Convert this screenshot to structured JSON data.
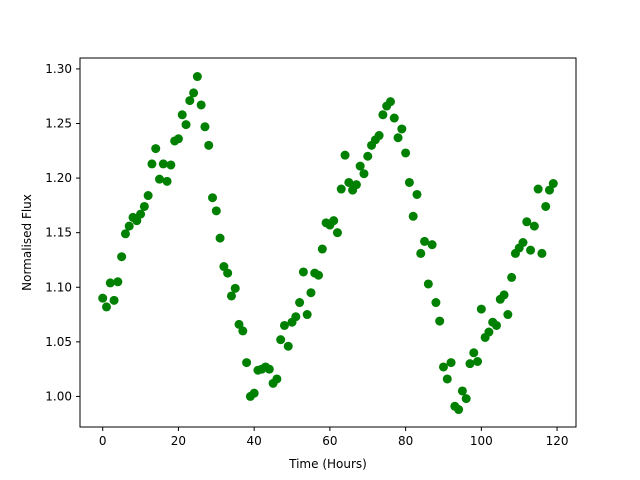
{
  "chart_data": {
    "type": "scatter",
    "title": "",
    "xlabel": "Time (Hours)",
    "ylabel": "Normalised Flux",
    "xlim": [
      -6,
      125
    ],
    "ylim": [
      0.972,
      1.31
    ],
    "xticks": [
      0,
      20,
      40,
      60,
      80,
      100,
      120
    ],
    "xtick_labels": [
      "0",
      "20",
      "40",
      "60",
      "80",
      "100",
      "120"
    ],
    "yticks": [
      1.0,
      1.05,
      1.1,
      1.15,
      1.2,
      1.25,
      1.3
    ],
    "ytick_labels": [
      "1.00",
      "1.05",
      "1.10",
      "1.15",
      "1.20",
      "1.25",
      "1.30"
    ],
    "grid": false,
    "marker_color": "#008000",
    "series": [
      {
        "x": [
          0,
          1,
          2,
          3,
          4,
          5,
          6,
          7,
          8,
          9,
          10,
          11,
          12,
          13,
          14,
          15,
          16,
          17,
          18,
          19,
          20,
          21,
          22,
          23,
          24,
          25,
          26,
          27,
          28,
          29,
          30,
          31,
          32,
          33,
          34,
          35,
          36,
          37,
          38,
          39,
          40,
          41,
          42,
          43,
          44,
          45,
          46,
          47,
          48,
          49,
          50,
          51,
          52,
          53,
          54,
          55,
          56,
          57,
          58,
          59,
          60,
          61,
          62,
          63,
          64,
          65,
          66,
          67,
          68,
          69,
          70,
          71,
          72,
          73,
          74,
          75,
          76,
          77,
          78,
          79,
          80,
          81,
          82,
          83,
          84,
          85,
          86,
          87,
          88,
          89,
          90,
          91,
          92,
          93,
          94,
          95,
          96,
          97,
          98,
          99,
          100,
          101,
          102,
          103,
          104,
          105,
          106,
          107,
          108,
          109,
          110,
          111,
          112,
          113,
          114,
          115,
          116,
          117,
          118,
          119
        ],
        "y": [
          1.09,
          1.082,
          1.104,
          1.088,
          1.105,
          1.128,
          1.149,
          1.156,
          1.164,
          1.161,
          1.167,
          1.174,
          1.184,
          1.213,
          1.227,
          1.199,
          1.213,
          1.197,
          1.212,
          1.234,
          1.236,
          1.258,
          1.249,
          1.271,
          1.278,
          1.293,
          1.267,
          1.247,
          1.23,
          1.182,
          1.17,
          1.145,
          1.119,
          1.113,
          1.092,
          1.099,
          1.066,
          1.06,
          1.031,
          1.0,
          1.003,
          1.024,
          1.025,
          1.027,
          1.025,
          1.012,
          1.016,
          1.052,
          1.065,
          1.046,
          1.068,
          1.073,
          1.086,
          1.114,
          1.075,
          1.095,
          1.113,
          1.111,
          1.135,
          1.159,
          1.157,
          1.161,
          1.15,
          1.19,
          1.221,
          1.196,
          1.189,
          1.194,
          1.211,
          1.204,
          1.22,
          1.23,
          1.235,
          1.239,
          1.258,
          1.266,
          1.27,
          1.255,
          1.237,
          1.245,
          1.223,
          1.196,
          1.165,
          1.185,
          1.131,
          1.142,
          1.103,
          1.139,
          1.086,
          1.069,
          1.027,
          1.016,
          1.031,
          0.991,
          0.988,
          1.005,
          0.998,
          1.03,
          1.04,
          1.032,
          1.08,
          1.054,
          1.059,
          1.068,
          1.065,
          1.089,
          1.093,
          1.075,
          1.109,
          1.131,
          1.136,
          1.141,
          1.16,
          1.134,
          1.156,
          1.19,
          1.131,
          1.174,
          1.189,
          1.195
        ]
      }
    ]
  }
}
